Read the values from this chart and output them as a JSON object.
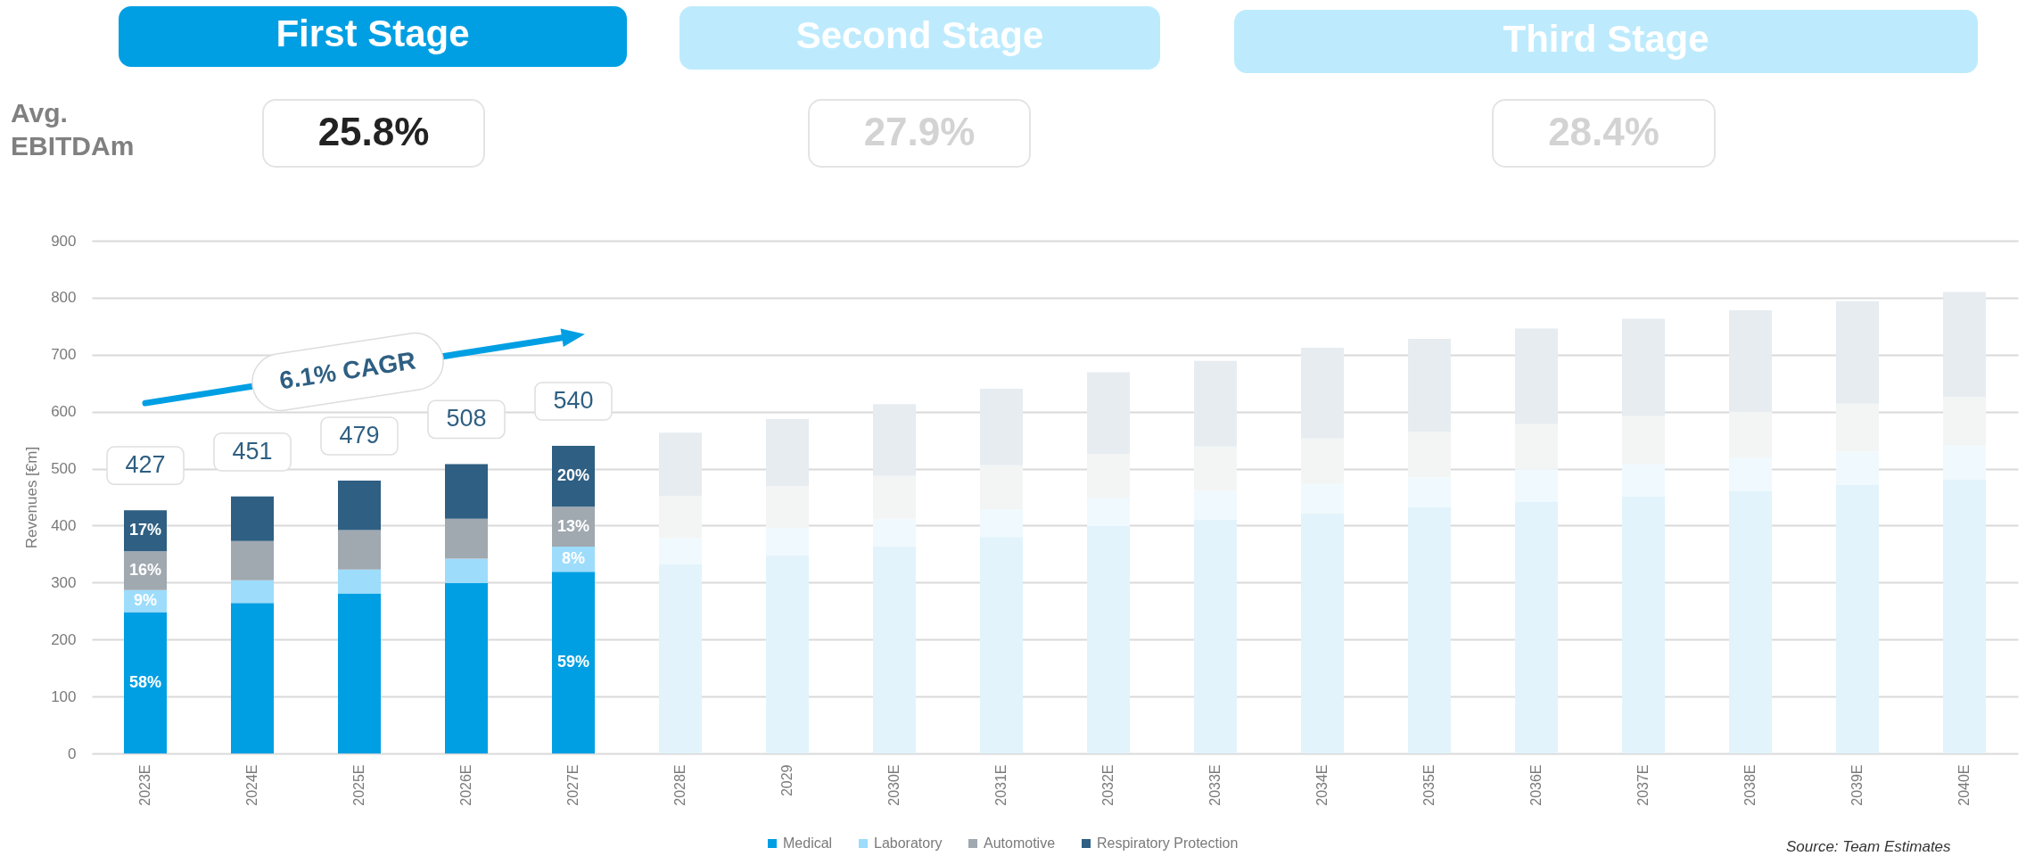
{
  "chart_data": {
    "type": "bar",
    "stacked": true,
    "ylabel": "Revenues [€m]",
    "categories": [
      "2023E",
      "2024E",
      "2025E",
      "2026E",
      "2027E",
      "2028E",
      "2029",
      "2030E",
      "2031E",
      "2032E",
      "2033E",
      "2034E",
      "2035E",
      "2036E",
      "2037E",
      "2038E",
      "2039E",
      "2040E"
    ],
    "series": [
      {
        "name": "Medical",
        "color": "#009fe3",
        "colors": [
          "#009fe3",
          "#009fe3",
          "#009fe3",
          "#009fe3",
          "#009fe3",
          "#e2f3fb",
          "#e2f3fb",
          "#e2f3fb",
          "#e2f3fb",
          "#e2f3fb",
          "#e2f3fb",
          "#e2f3fb",
          "#e2f3fb",
          "#e2f3fb",
          "#e2f3fb",
          "#e2f3fb",
          "#e2f3fb",
          "#e2f3fb"
        ],
        "values": [
          248,
          264,
          281,
          299,
          319,
          332,
          348,
          363,
          380,
          399,
          410,
          421,
          432,
          442,
          451,
          461,
          472,
          481
        ]
      },
      {
        "name": "Laboratory",
        "color": "#9ddcfb",
        "colors": [
          "#9ddcfb",
          "#9ddcfb",
          "#9ddcfb",
          "#9ddcfb",
          "#9ddcfb",
          "#f0f9fd",
          "#f0f9fd",
          "#f0f9fd",
          "#f0f9fd",
          "#f0f9fd",
          "#f0f9fd",
          "#f0f9fd",
          "#f0f9fd",
          "#f0f9fd",
          "#f0f9fd",
          "#f0f9fd",
          "#f0f9fd",
          "#f0f9fd"
        ],
        "values": [
          39,
          40,
          42,
          43,
          44,
          46,
          48,
          49,
          49,
          49,
          51,
          52,
          53,
          57,
          57,
          58,
          58,
          60
        ]
      },
      {
        "name": "Automotive",
        "color": "#a0a8b0",
        "colors": [
          "#a0a8b0",
          "#a0a8b0",
          "#a0a8b0",
          "#a0a8b0",
          "#a0a8b0",
          "#f3f5f5",
          "#f3f5f5",
          "#f3f5f5",
          "#f3f5f5",
          "#f3f5f5",
          "#f3f5f5",
          "#f3f5f5",
          "#f3f5f5",
          "#f3f5f5",
          "#f3f5f5",
          "#f3f5f5",
          "#f3f5f5",
          "#f3f5f5"
        ],
        "values": [
          68,
          69,
          69,
          70,
          70,
          74,
          73,
          75,
          77,
          78,
          78,
          80,
          80,
          79,
          84,
          81,
          84,
          85
        ]
      },
      {
        "name": "Respiratory Protection",
        "color": "#2f5f82",
        "colors": [
          "#2f5f82",
          "#2f5f82",
          "#2f5f82",
          "#2f5f82",
          "#2f5f82",
          "#e6ecf0",
          "#e6ecf0",
          "#e6ecf0",
          "#e6ecf0",
          "#e6ecf0",
          "#e6ecf0",
          "#e6ecf0",
          "#e6ecf0",
          "#e6ecf0",
          "#e6ecf0",
          "#e6ecf0",
          "#e6ecf0",
          "#e6ecf0"
        ],
        "values": [
          72,
          78,
          87,
          96,
          107,
          111,
          118,
          126,
          134,
          143,
          150,
          159,
          163,
          168,
          171,
          178,
          180,
          184
        ]
      },
      {
        "type": "line",
        "color": "#009fe3",
        "x": [
          "2023E",
          "2027E"
        ],
        "values": [
          615,
          733
        ]
      }
    ],
    "totals": [
      "427",
      "451",
      "479",
      "508",
      "540",
      null,
      null,
      null,
      null,
      null,
      null,
      null,
      null,
      null,
      null,
      null,
      null,
      null
    ],
    "ylim": [
      0,
      900
    ],
    "yticks": [
      0,
      100,
      200,
      300,
      400,
      500,
      600,
      700,
      800,
      900
    ],
    "grid": "y",
    "legend": "bottom",
    "annotations": [
      "First Stage",
      "Second Stage",
      "Third Stage",
      "Avg.\nEBITDAm",
      "25.8%",
      "27.9%",
      "28.4%",
      "6.1% CAGR",
      "Source: Team Estimates",
      "58%",
      "59%",
      {
        "text": "9%",
        "x": "2023E",
        "y": 287
      },
      {
        "text": "16%",
        "x": "2023E",
        "y": 355
      },
      {
        "text": "17%",
        "x": "2023E",
        "y": 427
      },
      {
        "text": "8%",
        "x": "2027E",
        "y": 363
      },
      {
        "text": "13%",
        "x": "2027E",
        "y": 433
      },
      {
        "text": "20%",
        "x": "2027E",
        "y": 540
      }
    ]
  }
}
